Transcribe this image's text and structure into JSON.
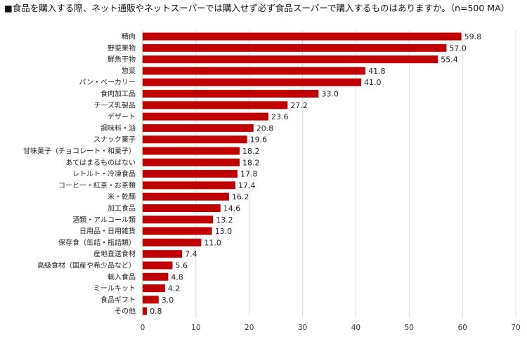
{
  "title": "■食品を購入する際、ネット通販やネットスーパーでは購入せず必ず食品スーパーで購入するものはありますか。（n=500 MA）",
  "chart_data": {
    "type": "bar",
    "orientation": "horizontal",
    "title": "■食品を購入する際、ネット通販やネットスーパーでは購入せず必ず食品スーパーで購入するものはありますか。（n=500 MA）",
    "xlabel": "",
    "ylabel": "",
    "xlim": [
      0,
      70
    ],
    "xticks": [
      "0",
      "10",
      "20",
      "30",
      "40",
      "50",
      "60",
      "70"
    ],
    "grid": "vertical",
    "legend": "none",
    "bar_color": "#C00000",
    "categories": [
      "精肉",
      "野菜果物",
      "鮮魚干物",
      "惣菜",
      "パン・ベーカリー",
      "食肉加工品",
      "チーズ乳製品",
      "デザート",
      "調味料・油",
      "スナック菓子",
      "甘味菓子（チョコレート・和菓子）",
      "あてはまるものはない",
      "レトルト・冷凍食品",
      "コーヒー・紅茶・お茶類",
      "米・乾麺",
      "加工食品",
      "酒類・アルコール類",
      "日用品・日用雑貨",
      "保存食（缶詰・瓶詰類）",
      "産地直送食材",
      "高級食材（国産や希少品など）",
      "輸入食品",
      "ミールキット",
      "食品ギフト",
      "その他"
    ],
    "values": [
      59.8,
      57.0,
      55.4,
      41.8,
      41.0,
      33.0,
      27.2,
      23.6,
      20.8,
      19.6,
      18.2,
      18.2,
      17.8,
      17.4,
      16.2,
      14.6,
      13.2,
      13.0,
      11.0,
      7.4,
      5.6,
      4.8,
      4.2,
      3.0,
      0.8
    ],
    "value_labels": [
      "59.8",
      "57.0",
      "55.4",
      "41.8",
      "41.0",
      "33.0",
      "27.2",
      "23.6",
      "20.8",
      "19.6",
      "18.2",
      "18.2",
      "17.8",
      "17.4",
      "16.2",
      "14.6",
      "13.2",
      "13.0",
      "11.0",
      "7.4",
      "5.6",
      "4.8",
      "4.2",
      "3.0",
      "0.8"
    ]
  }
}
